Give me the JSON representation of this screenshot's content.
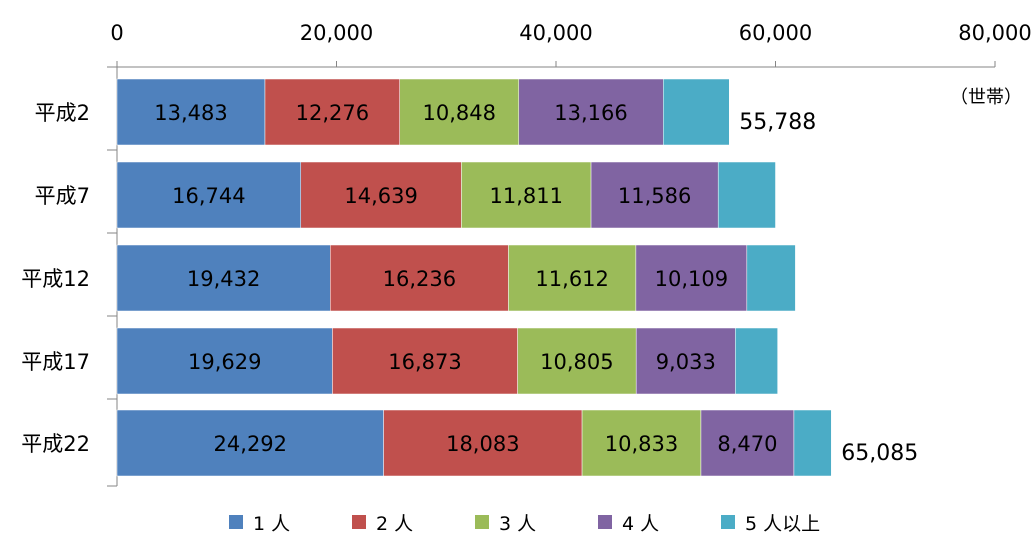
{
  "chart_data": {
    "type": "bar",
    "orientation": "horizontal",
    "stacked": true,
    "categories": [
      "平成2",
      "平成7",
      "平成12",
      "平成17",
      "平成22"
    ],
    "series": [
      {
        "name": "1人",
        "legend_label": "1 人",
        "color": "#4F81BD",
        "values": [
          13483,
          16744,
          19432,
          19629,
          24292
        ]
      },
      {
        "name": "2人",
        "legend_label": "2 人",
        "color": "#C0504D",
        "values": [
          12276,
          14639,
          16236,
          16873,
          18083
        ]
      },
      {
        "name": "3人",
        "legend_label": "3 人",
        "color": "#9BBB59",
        "values": [
          10848,
          11811,
          11612,
          10805,
          10833
        ]
      },
      {
        "name": "4人",
        "legend_label": "4 人",
        "color": "#8064A2",
        "values": [
          13166,
          11586,
          10109,
          9033,
          8470
        ]
      },
      {
        "name": "5人以上",
        "legend_label": "5 人以上",
        "color": "#4BACC6",
        "values": [
          6015,
          5220,
          4423,
          3854,
          3407
        ]
      }
    ],
    "segment_labels": [
      [
        "13,483",
        "12,276",
        "10,848",
        "13,166",
        ""
      ],
      [
        "16,744",
        "14,639",
        "11,811",
        "11,586",
        ""
      ],
      [
        "19,432",
        "16,236",
        "11,612",
        "10,109",
        ""
      ],
      [
        "19,629",
        "16,873",
        "10,805",
        "9,033",
        ""
      ],
      [
        "24,292",
        "18,083",
        "10,833",
        "8,470",
        ""
      ]
    ],
    "totals": [
      "55,788",
      "",
      "",
      "",
      "65,085"
    ],
    "xlim": [
      0,
      80000
    ],
    "x_ticks": [
      0,
      20000,
      40000,
      60000,
      80000
    ],
    "x_tick_labels": [
      "0",
      "20,000",
      "40,000",
      "60,000",
      "80,000"
    ],
    "unit_label": "（世帯）",
    "legend_position": "bottom",
    "grid": false
  }
}
